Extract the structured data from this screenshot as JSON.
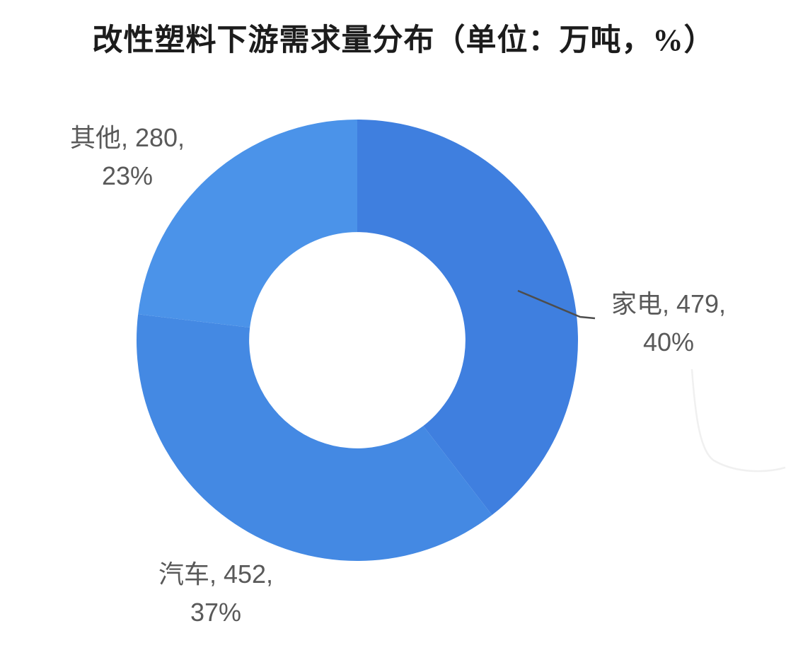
{
  "chart_data": {
    "type": "pie",
    "subtype": "donut",
    "title": "改性塑料下游需求量分布（单位：万吨，%）",
    "unit": "万吨",
    "legend_position": "none",
    "labels_style": "callout-outside",
    "start_angle_deg": 0,
    "direction": "clockwise",
    "inner_radius_ratio": 0.49,
    "background_color": "#ffffff",
    "title_color": "#1c1c1c",
    "label_text_color": "#595959",
    "leader_line_color": "#4d4d4d",
    "segments": [
      {
        "label": "家电",
        "value": 479,
        "pct": 40,
        "color": "#3f7fdf",
        "label_line1": "家电, 479,",
        "label_line2": "40%"
      },
      {
        "label": "汽车",
        "value": 452,
        "pct": 37,
        "color": "#4489e3",
        "label_line1": "汽车, 452,",
        "label_line2": "37%"
      },
      {
        "label": "其他",
        "value": 280,
        "pct": 23,
        "color": "#4b93e9",
        "label_line1": "其他, 280,",
        "label_line2": "23%"
      }
    ]
  }
}
